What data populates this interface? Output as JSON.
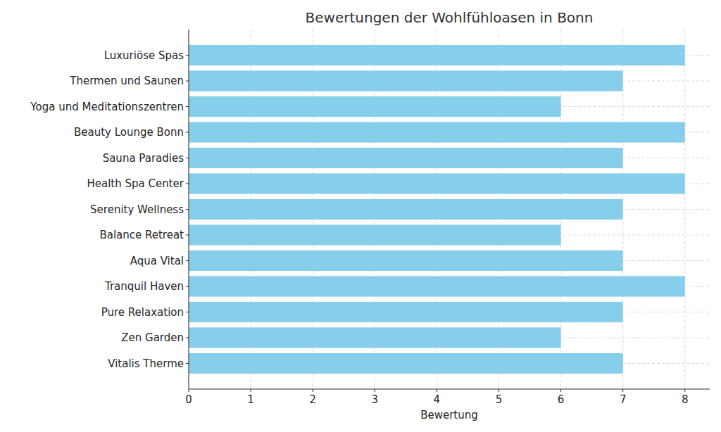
{
  "chart_data": {
    "type": "bar",
    "orientation": "horizontal",
    "title": "Bewertungen der Wohlfühloasen in Bonn",
    "xlabel": "Bewertung",
    "categories": [
      "Luxuriöse Spas",
      "Thermen und Saunen",
      "Yoga und Meditationszentren",
      "Beauty Lounge Bonn",
      "Sauna Paradies",
      "Health Spa Center",
      "Serenity Wellness",
      "Balance Retreat",
      "Aqua Vital",
      "Tranquil Haven",
      "Pure Relaxation",
      "Zen Garden",
      "Vitalis Therme"
    ],
    "values": [
      8,
      7,
      6,
      8,
      7,
      8,
      7,
      6,
      7,
      8,
      7,
      6,
      7
    ],
    "color": "#87ceeb",
    "xlim": [
      0,
      8.4
    ],
    "xticks": [
      0,
      1,
      2,
      3,
      4,
      5,
      6,
      7,
      8
    ],
    "grid": true
  }
}
